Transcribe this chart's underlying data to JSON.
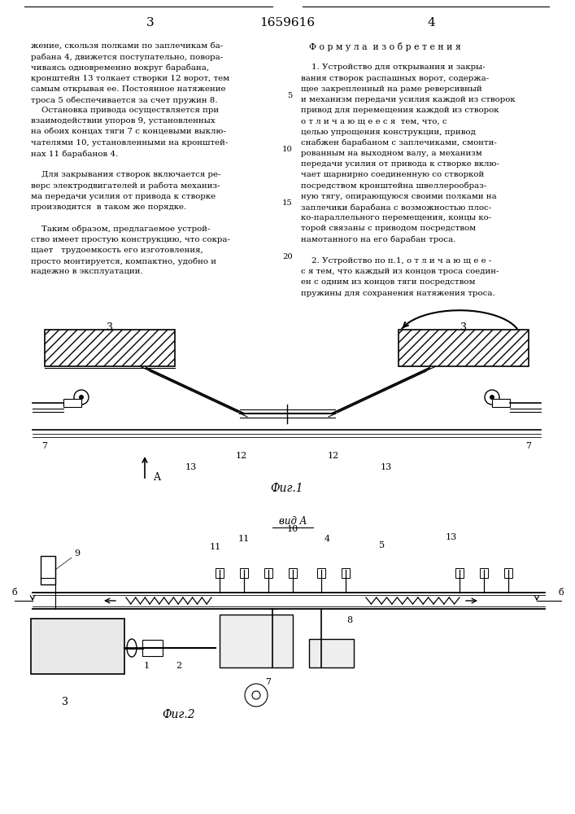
{
  "page_number_left": "3",
  "patent_number": "1659616",
  "page_number_right": "4",
  "left_text": [
    "жение, скользя полками по заплечикам ба-",
    "рабана 4, движется поступательно, повора-",
    "чиваясь одновременно вокруг барабана,",
    "кронштейн 13 толкает створки 12 ворот, тем",
    "самым открывая ее. Постоянное натяжение",
    "троса 5 обеспечивается за счет пружин 8.",
    "    Остановка привода осуществляется при",
    "взаимодействии упоров 9, установленных",
    "на обоих концах тяги 7 с концевыми выклю-",
    "чателями 10, установленными на кронштей-",
    "нах 11 барабанов 4.",
    "",
    "    Для закрывания створок включается ре-",
    "верс электродвигателей и работа механиз-",
    "ма передачи усилия от привода к створке",
    "производится  в таком же порядке.",
    "",
    "    Таким образом, предлагаемое устрой-",
    "ство имеет простую конструкцию, что сокра-",
    "щает   трудоемкость его изготовления,",
    "просто монтируется, компактно, удобно и",
    "надежно в эксплуатации."
  ],
  "right_text_formula": "Ф о р м у л а  и з о б р е т е н и я",
  "right_text": [
    "",
    "    1. Устройство для открывания и закры-",
    "вания створок распашных ворот, содержа-",
    "щее закрепленный на раме реверсивный",
    "и механизм передачи усилия каждой из створок",
    "привод для перемещения каждой из створок",
    "о т л и ч а ю щ е е с я  тем, что, с",
    "целью упрощения конструкции, привод",
    "снабжен барабаном с заплечиками, смонти-",
    "рованным на выходном валу, а механизм",
    "передачи усилия от привода к створке вклю-",
    "чает шарнирно соединенную со створкой",
    "посредством кронштейна швеллерообраз-",
    "ную тягу, опирающуюся своими полками на",
    "заплечики барабана с возможностью плос-",
    "ко-параллельного перемещения, концы ко-",
    "торой связаны с приводом посредством",
    "намотанного на его барабан троса.",
    "",
    "    2. Устройство по п.1, о т л и ч а ю щ е е -",
    "с я тем, что каждый из концов троса соедин-",
    "ен с одним из концов тяги посредством",
    "пружины для сохранения натяжения троса."
  ],
  "fig1_label": "Фиг.1",
  "fig2_label": "Фиг.2",
  "vid_a_label": "вид A",
  "background_color": "#ffffff"
}
